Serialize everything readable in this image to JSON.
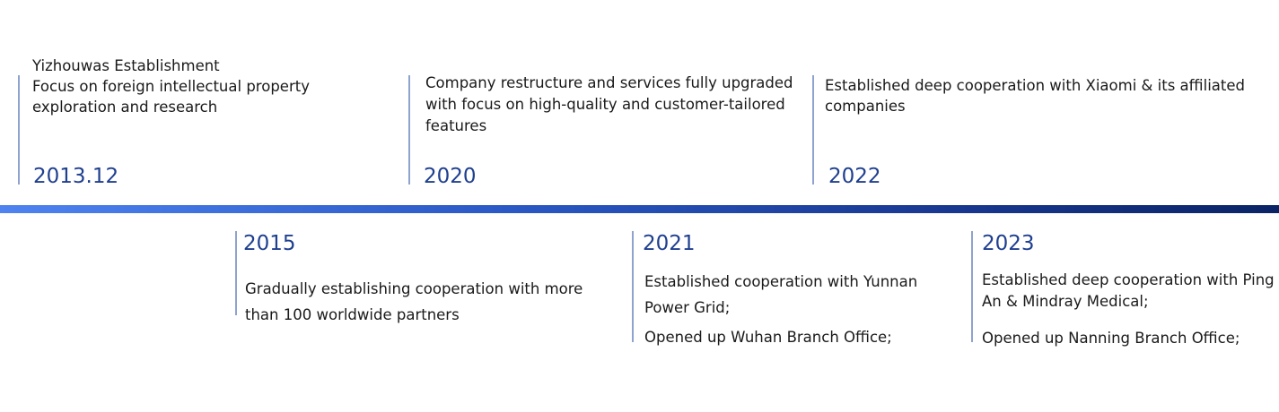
{
  "colors": {
    "timeline_start": "#4e83f0",
    "timeline_end": "#0b2466",
    "year": "#1f3f8f",
    "divider": "#8fa3cf"
  },
  "milestones": [
    {
      "year": "2013.12",
      "lines": [
        "Yizhouwas Establishment",
        "Focus on foreign intellectual property",
        "exploration and research"
      ]
    },
    {
      "year": "2020",
      "lines": [
        "Company restructure and services fully upgraded",
        "with focus on high-quality and customer-tailored",
        "features"
      ]
    },
    {
      "year": "2022",
      "lines": [
        "Established deep cooperation with Xiaomi & its affiliated",
        "companies"
      ]
    },
    {
      "year": "2015",
      "lines": [
        "Gradually establishing cooperation with more",
        "than 100 worldwide partners"
      ]
    },
    {
      "year": "2021",
      "lines": [
        "Established cooperation with Yunnan",
        "Power Grid;",
        "Opened up Wuhan Branch Office;"
      ]
    },
    {
      "year": "2023",
      "lines": [
        "Established deep cooperation with Ping",
        "An & Mindray Medical;",
        "Opened up Nanning Branch Office;"
      ]
    }
  ]
}
